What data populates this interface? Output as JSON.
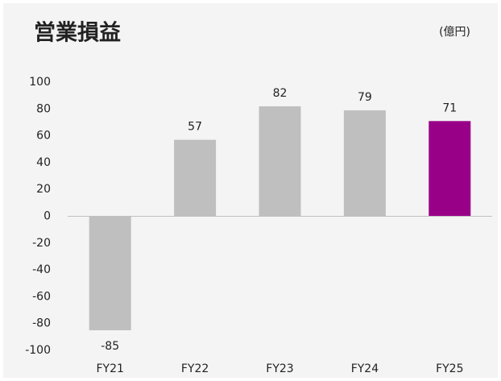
{
  "chart_data": {
    "type": "bar",
    "title": "営業損益",
    "unit_label": "(億円)",
    "categories": [
      "FY21",
      "FY22",
      "FY23",
      "FY24",
      "FY25"
    ],
    "values": [
      -85,
      57,
      82,
      79,
      71
    ],
    "colors": [
      "#bfbfbf",
      "#bfbfbf",
      "#bfbfbf",
      "#bfbfbf",
      "#990088"
    ],
    "ylim": [
      -100,
      100
    ],
    "yticks": [
      -100,
      -80,
      -60,
      -40,
      -20,
      0,
      20,
      40,
      60,
      80,
      100
    ],
    "grid": false
  }
}
